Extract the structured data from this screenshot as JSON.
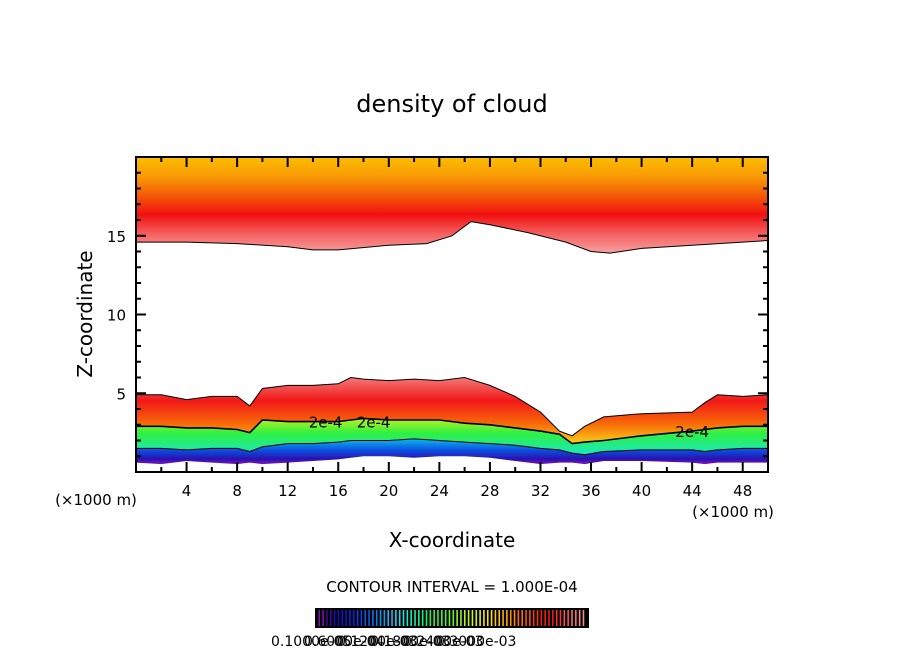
{
  "chart_data": {
    "type": "heatmap",
    "title": "density of cloud",
    "xlabel": "X-coordinate",
    "ylabel": "Z-coordinate",
    "x_unit_label": "(×1000 m)",
    "xlim": [
      0,
      50
    ],
    "ylim": [
      0,
      20
    ],
    "x_ticks": [
      4,
      8,
      12,
      16,
      20,
      24,
      28,
      32,
      36,
      40,
      44,
      48
    ],
    "x_minor_step": 2,
    "y_ticks": [
      5,
      10,
      15
    ],
    "y_minor_step": 1,
    "contour_interval_text": "CONTOUR INTERVAL = 1.000E-04",
    "contour_labels": [
      {
        "text": "2e-4",
        "x": 15.0,
        "z": 3.2
      },
      {
        "text": "2e-4",
        "x": 44.0,
        "z": 2.6
      },
      {
        "text": "2e-4",
        "x": 18.8,
        "z": 3.2
      }
    ],
    "upper_layer": {
      "description_units": "km",
      "top": 20,
      "base_x": [
        0,
        4,
        8,
        12,
        14,
        16,
        20,
        23,
        25,
        26.5,
        28,
        31,
        34,
        36,
        37.5,
        40,
        44,
        48,
        50
      ],
      "base_z": [
        14.6,
        14.6,
        14.5,
        14.3,
        14.1,
        14.1,
        14.4,
        14.5,
        15.0,
        15.9,
        15.7,
        15.2,
        14.6,
        14.0,
        13.9,
        14.2,
        14.4,
        14.6,
        14.7
      ]
    },
    "lower_layer": {
      "top_x": [
        0,
        2,
        4,
        6,
        8,
        9,
        10,
        12,
        14,
        16,
        17,
        18,
        20,
        22,
        24,
        26,
        28,
        30,
        32,
        33.5,
        34.5,
        35.5,
        37,
        40,
        44,
        45,
        46,
        48,
        50
      ],
      "top_z": [
        4.9,
        4.9,
        4.6,
        4.8,
        4.8,
        4.2,
        5.3,
        5.5,
        5.5,
        5.6,
        6.0,
        5.9,
        5.8,
        5.9,
        5.8,
        6.0,
        5.5,
        4.8,
        3.8,
        2.6,
        2.3,
        2.9,
        3.5,
        3.7,
        3.8,
        4.4,
        4.9,
        4.8,
        4.9
      ],
      "contour_2e4_z": [
        2.9,
        2.9,
        2.8,
        2.8,
        2.7,
        2.5,
        3.3,
        3.2,
        3.2,
        3.2,
        3.3,
        3.4,
        3.3,
        3.3,
        3.3,
        3.1,
        3.0,
        2.8,
        2.6,
        2.4,
        1.8,
        1.9,
        2.0,
        2.3,
        2.6,
        2.7,
        2.8,
        2.9,
        2.9
      ],
      "contour_1e4_z": [
        1.5,
        1.5,
        1.4,
        1.5,
        1.5,
        1.3,
        1.6,
        1.8,
        1.8,
        1.9,
        2.0,
        2.0,
        2.0,
        2.1,
        2.0,
        1.9,
        1.8,
        1.7,
        1.5,
        1.4,
        1.2,
        1.1,
        1.3,
        1.4,
        1.4,
        1.3,
        1.4,
        1.5,
        1.5
      ],
      "bottom_z": [
        0.6,
        0.5,
        0.7,
        0.6,
        0.5,
        0.6,
        0.5,
        0.6,
        0.7,
        0.8,
        0.9,
        1.0,
        1.0,
        0.9,
        1.0,
        1.0,
        0.9,
        0.7,
        0.5,
        0.6,
        0.6,
        0.5,
        0.7,
        0.7,
        0.6,
        0.5,
        0.6,
        0.6,
        0.6
      ]
    },
    "colorbar": {
      "colors": [
        "#7a16b0",
        "#3a0a9a",
        "#1a10b0",
        "#0a18c8",
        "#0826d8",
        "#0a3ee0",
        "#0c5ae8",
        "#0e78ee",
        "#109af2",
        "#14bcf4",
        "#18d8f0",
        "#1ae8d4",
        "#18eeb0",
        "#16f08a",
        "#18f266",
        "#2cf246",
        "#4af23a",
        "#6af234",
        "#8ef230",
        "#b0f22c",
        "#d2f028",
        "#eeec24",
        "#f8dc1e",
        "#fcc418",
        "#fca814",
        "#fc8c10",
        "#fa700c",
        "#f65408",
        "#f23a06",
        "#ee2404",
        "#ec1c1c",
        "#ee3838",
        "#f05454",
        "#f27070",
        "#f48a8a"
      ],
      "labels": [
        "0.1000e-05",
        "0.6000e-04",
        "0.1200e-03",
        "0.1800e-03",
        "0.2400e-03",
        "0.3000e-03"
      ]
    }
  }
}
